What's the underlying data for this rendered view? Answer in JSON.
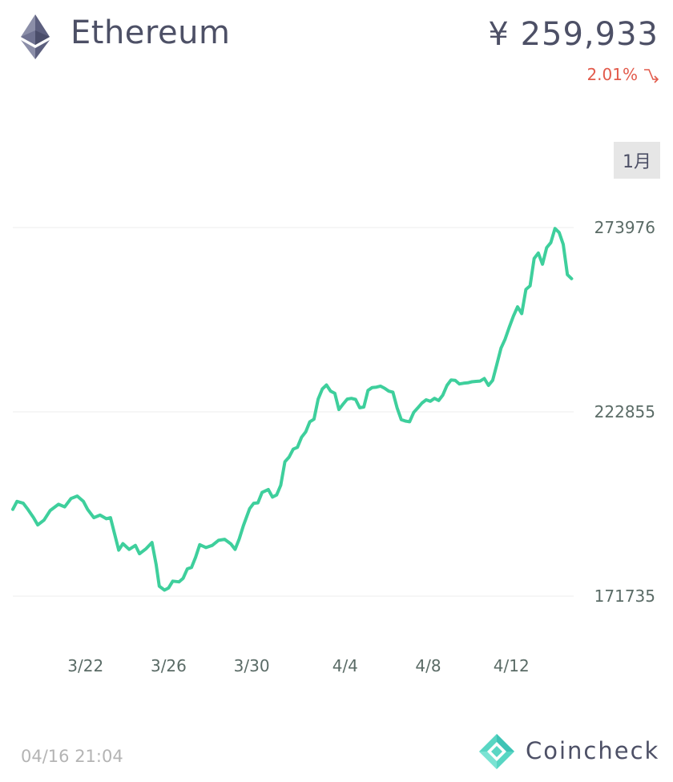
{
  "header": {
    "coin_icon": "ethereum-diamond-icon",
    "coin_name": "Ethereum",
    "price": "¥ 259,933",
    "change": "2.01%",
    "change_direction_icon": "trend-down-arrow-icon",
    "change_color": "#e25a4b"
  },
  "period": {
    "label": "1月"
  },
  "colors": {
    "line": "#3ecf9c",
    "grid": "#eeeeee",
    "axis_text": "#5a6b66",
    "text": "#4d5066"
  },
  "chart_data": {
    "type": "line",
    "title": "",
    "xlabel": "",
    "ylabel": "",
    "ylim": [
      171735,
      273976
    ],
    "y_ticks": [
      "273976",
      "222855",
      "171735"
    ],
    "x_tick_labels": [
      "3/22",
      "3/26",
      "3/30",
      "4/4",
      "4/8",
      "4/12"
    ],
    "x_tick_days": [
      3.5,
      7.5,
      11.5,
      16,
      20,
      24
    ],
    "grid": "horizontal",
    "series": [
      {
        "name": "",
        "color": "#3ecf9c",
        "points": [
          [
            0,
            195800
          ],
          [
            0.2,
            198000
          ],
          [
            0.5,
            197500
          ],
          [
            0.7,
            196000
          ],
          [
            1.0,
            193500
          ],
          [
            1.2,
            191500
          ],
          [
            1.5,
            192800
          ],
          [
            1.8,
            195500
          ],
          [
            2.2,
            197200
          ],
          [
            2.5,
            196500
          ],
          [
            2.8,
            198800
          ],
          [
            3.1,
            199500
          ],
          [
            3.4,
            198000
          ],
          [
            3.6,
            195800
          ],
          [
            3.9,
            193500
          ],
          [
            4.2,
            194200
          ],
          [
            4.5,
            193200
          ],
          [
            4.7,
            193500
          ],
          [
            4.9,
            189000
          ],
          [
            5.1,
            184500
          ],
          [
            5.3,
            186300
          ],
          [
            5.6,
            184700
          ],
          [
            5.9,
            185800
          ],
          [
            6.1,
            183500
          ],
          [
            6.4,
            184800
          ],
          [
            6.7,
            186600
          ],
          [
            6.9,
            180500
          ],
          [
            7.05,
            174500
          ],
          [
            7.3,
            173400
          ],
          [
            7.5,
            174000
          ],
          [
            7.7,
            175900
          ],
          [
            8.0,
            175700
          ],
          [
            8.2,
            176700
          ],
          [
            8.4,
            179300
          ],
          [
            8.6,
            179700
          ],
          [
            8.8,
            182500
          ],
          [
            9.0,
            186000
          ],
          [
            9.3,
            185200
          ],
          [
            9.6,
            185800
          ],
          [
            9.9,
            187200
          ],
          [
            10.2,
            187500
          ],
          [
            10.5,
            186200
          ],
          [
            10.7,
            184700
          ],
          [
            10.9,
            187600
          ],
          [
            11.1,
            191300
          ],
          [
            11.4,
            196000
          ],
          [
            11.6,
            197500
          ],
          [
            11.8,
            197600
          ],
          [
            12.0,
            200500
          ],
          [
            12.3,
            201300
          ],
          [
            12.5,
            199200
          ],
          [
            12.7,
            199800
          ],
          [
            12.9,
            202500
          ],
          [
            13.1,
            209000
          ],
          [
            13.3,
            210300
          ],
          [
            13.5,
            212500
          ],
          [
            13.7,
            213000
          ],
          [
            13.9,
            215800
          ],
          [
            14.1,
            217300
          ],
          [
            14.3,
            220100
          ],
          [
            14.5,
            220800
          ],
          [
            14.7,
            226400
          ],
          [
            14.9,
            229200
          ],
          [
            15.1,
            230300
          ],
          [
            15.3,
            228600
          ],
          [
            15.5,
            228000
          ],
          [
            15.7,
            223500
          ],
          [
            15.9,
            225000
          ],
          [
            16.1,
            226400
          ],
          [
            16.3,
            226600
          ],
          [
            16.5,
            226300
          ],
          [
            16.7,
            224000
          ],
          [
            16.9,
            224200
          ],
          [
            17.1,
            228800
          ],
          [
            17.3,
            229600
          ],
          [
            17.5,
            229700
          ],
          [
            17.7,
            230000
          ],
          [
            17.9,
            229400
          ],
          [
            18.1,
            228600
          ],
          [
            18.3,
            228300
          ],
          [
            18.5,
            224000
          ],
          [
            18.7,
            220700
          ],
          [
            18.9,
            220300
          ],
          [
            19.1,
            220100
          ],
          [
            19.3,
            222700
          ],
          [
            19.5,
            224000
          ],
          [
            19.7,
            225300
          ],
          [
            19.9,
            226200
          ],
          [
            20.1,
            225800
          ],
          [
            20.3,
            226600
          ],
          [
            20.5,
            226000
          ],
          [
            20.7,
            227500
          ],
          [
            20.9,
            230200
          ],
          [
            21.1,
            231700
          ],
          [
            21.3,
            231600
          ],
          [
            21.5,
            230600
          ],
          [
            21.7,
            230800
          ],
          [
            21.9,
            230900
          ],
          [
            22.1,
            231200
          ],
          [
            22.3,
            231300
          ],
          [
            22.5,
            231400
          ],
          [
            22.7,
            232100
          ],
          [
            22.9,
            230200
          ],
          [
            23.1,
            231600
          ],
          [
            23.3,
            236000
          ],
          [
            23.5,
            240500
          ],
          [
            23.7,
            243000
          ],
          [
            23.9,
            246300
          ],
          [
            24.1,
            249400
          ],
          [
            24.3,
            252000
          ],
          [
            24.5,
            250100
          ],
          [
            24.7,
            256800
          ],
          [
            24.9,
            257800
          ],
          [
            25.1,
            265400
          ],
          [
            25.3,
            266900
          ],
          [
            25.5,
            263800
          ],
          [
            25.7,
            268400
          ],
          [
            25.9,
            269800
          ],
          [
            26.1,
            273700
          ],
          [
            26.3,
            272600
          ],
          [
            26.5,
            269300
          ],
          [
            26.7,
            260900
          ],
          [
            26.9,
            259800
          ]
        ]
      }
    ]
  },
  "footer": {
    "timestamp": "04/16 21:04",
    "brand_icon": "coincheck-logo-icon",
    "brand_name": "Coincheck"
  }
}
